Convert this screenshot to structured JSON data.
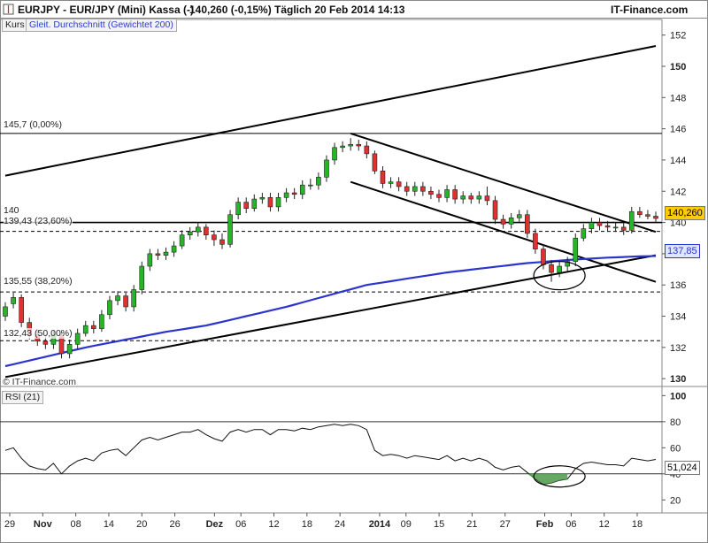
{
  "header": {
    "title": "EURJPY - EUR/JPY (Mini) Kassa (-)",
    "quote": "140,260 (-0,15%)",
    "interval_date": "Täglich  20 Feb 2014 14:13",
    "brand": "IT-Finance.com"
  },
  "legend": {
    "kurs": "Kurs",
    "ma": "Gleit. Durchschnitt (Gewichtet 200)"
  },
  "levels": {
    "l1": "145,7 (0,00%)",
    "l2": "140",
    "l3": "139,43 (23,60%)",
    "l4": "135,55 (38,20%)",
    "l5": "132,43 (50,00%)"
  },
  "price_last": "140,260",
  "ma_last": "137,85",
  "credit": "© IT-Finance.com",
  "rsi": {
    "label": "RSI (21)",
    "last": "51,024",
    "ticks": [
      "100",
      "80",
      "60",
      "40",
      "20"
    ]
  },
  "price_ticks": [
    "152",
    "150",
    "148",
    "146",
    "144",
    "142",
    "140",
    "138",
    "136",
    "134",
    "132",
    "130"
  ],
  "price_ticks_bold": [
    "150",
    "130"
  ],
  "x_ticks": [
    "29",
    "Nov",
    "08",
    "14",
    "20",
    "26",
    "Dez",
    "06",
    "12",
    "18",
    "24",
    "2014",
    "09",
    "15",
    "21",
    "27",
    "Feb",
    "06",
    "12",
    "18"
  ],
  "x_ticks_bold": [
    "Nov",
    "Dez",
    "2014",
    "Feb"
  ],
  "colors": {
    "up": "#26b526",
    "down": "#e03030",
    "ma": "#2b34cc",
    "line": "#000000"
  },
  "chart_data": {
    "type": "candlestick",
    "instrument": "EUR/JPY",
    "interval": "daily",
    "y_range": [
      129.5,
      153
    ],
    "rsi_range": [
      10,
      105
    ],
    "dates": [
      "28.10",
      "29.10",
      "30.10",
      "31.10",
      "01.11",
      "04.11",
      "05.11",
      "06.11",
      "07.11",
      "08.11",
      "11.11",
      "12.11",
      "13.11",
      "14.11",
      "15.11",
      "18.11",
      "19.11",
      "20.11",
      "21.11",
      "22.11",
      "25.11",
      "26.11",
      "27.11",
      "28.11",
      "29.11",
      "02.12",
      "03.12",
      "04.12",
      "05.12",
      "06.12",
      "09.12",
      "10.12",
      "11.12",
      "12.12",
      "13.12",
      "16.12",
      "17.12",
      "18.12",
      "19.12",
      "20.12",
      "23.12",
      "24.12",
      "26.12",
      "27.12",
      "30.12",
      "31.12",
      "02.01",
      "03.01",
      "06.01",
      "07.01",
      "08.01",
      "09.01",
      "10.01",
      "13.01",
      "14.01",
      "15.01",
      "16.01",
      "17.01",
      "20.01",
      "21.01",
      "22.01",
      "23.01",
      "24.01",
      "27.01",
      "28.01",
      "29.01",
      "30.01",
      "31.01",
      "03.02",
      "04.02",
      "05.02",
      "06.02",
      "07.02",
      "10.02",
      "11.02",
      "12.02",
      "13.02",
      "14.02",
      "17.02",
      "18.02",
      "19.02",
      "20.02"
    ],
    "open": [
      134.0,
      134.8,
      135.2,
      133.6,
      132.8,
      132.4,
      132.2,
      132.8,
      131.6,
      132.2,
      132.9,
      133.4,
      133.2,
      134.1,
      135.0,
      135.3,
      134.6,
      135.7,
      137.2,
      138.0,
      137.9,
      138.1,
      138.5,
      139.2,
      139.4,
      139.7,
      139.2,
      138.9,
      138.6,
      140.5,
      141.3,
      140.9,
      141.5,
      141.6,
      141.0,
      141.6,
      141.9,
      141.8,
      142.4,
      142.4,
      142.9,
      144.0,
      144.8,
      144.9,
      145.0,
      144.9,
      144.4,
      143.3,
      142.5,
      142.6,
      142.3,
      142.0,
      142.3,
      142.0,
      141.8,
      141.6,
      142.1,
      141.5,
      141.7,
      141.5,
      141.7,
      141.4,
      140.2,
      139.9,
      140.3,
      140.5,
      139.3,
      138.3,
      137.3,
      136.8,
      137.2,
      137.5,
      139.0,
      139.6,
      140.0,
      139.8,
      139.7,
      139.7,
      139.5,
      140.7,
      140.5,
      140.4
    ],
    "close": [
      134.6,
      135.2,
      133.6,
      132.8,
      132.4,
      132.2,
      132.8,
      131.6,
      132.2,
      132.9,
      133.4,
      133.2,
      134.1,
      135.0,
      135.3,
      134.6,
      135.7,
      137.2,
      138.0,
      137.9,
      138.1,
      138.5,
      139.2,
      139.4,
      139.7,
      139.2,
      138.9,
      138.6,
      140.5,
      141.3,
      140.9,
      141.5,
      141.6,
      141.0,
      141.6,
      141.9,
      141.8,
      142.4,
      142.4,
      142.9,
      144.0,
      144.8,
      144.9,
      145.0,
      144.9,
      144.4,
      143.3,
      142.5,
      142.6,
      142.3,
      142.0,
      142.3,
      142.0,
      141.8,
      141.6,
      142.1,
      141.5,
      141.7,
      141.5,
      141.7,
      141.4,
      140.2,
      139.9,
      140.3,
      140.5,
      139.3,
      138.3,
      137.3,
      136.8,
      137.2,
      137.5,
      139.0,
      139.6,
      140.0,
      139.8,
      139.7,
      139.7,
      139.5,
      140.7,
      140.5,
      140.4,
      140.26
    ],
    "high": [
      134.9,
      135.5,
      135.4,
      133.9,
      133.1,
      132.8,
      133.1,
      133.0,
      132.5,
      133.2,
      133.7,
      133.7,
      134.4,
      135.3,
      135.6,
      135.5,
      136.0,
      137.5,
      138.3,
      138.3,
      138.4,
      138.8,
      139.5,
      139.7,
      140.0,
      139.9,
      139.5,
      139.3,
      140.8,
      141.6,
      141.6,
      141.8,
      141.9,
      141.9,
      141.9,
      142.2,
      142.2,
      142.7,
      142.8,
      143.2,
      144.3,
      145.1,
      145.2,
      145.4,
      145.3,
      145.2,
      144.6,
      143.6,
      142.9,
      142.9,
      142.6,
      142.6,
      142.6,
      142.3,
      142.1,
      142.4,
      142.4,
      142.0,
      141.9,
      142.0,
      142.3,
      141.7,
      140.5,
      140.6,
      140.8,
      140.8,
      139.6,
      138.6,
      137.6,
      137.5,
      137.8,
      139.3,
      139.9,
      140.3,
      140.3,
      140.1,
      140.0,
      140.0,
      141.0,
      141.0,
      140.8,
      140.7
    ],
    "low": [
      133.7,
      134.5,
      133.3,
      132.5,
      132.1,
      131.9,
      131.9,
      131.3,
      131.3,
      131.9,
      132.7,
      132.9,
      133.0,
      133.8,
      134.7,
      134.3,
      134.3,
      135.4,
      136.9,
      137.6,
      137.6,
      137.8,
      138.3,
      138.9,
      139.1,
      138.9,
      138.5,
      138.3,
      138.4,
      140.2,
      140.6,
      140.7,
      141.2,
      140.7,
      140.7,
      141.3,
      141.5,
      141.5,
      142.1,
      142.1,
      142.6,
      143.7,
      144.5,
      144.6,
      144.6,
      144.1,
      143.1,
      142.2,
      142.2,
      142.0,
      141.7,
      141.7,
      141.7,
      141.5,
      141.3,
      141.3,
      141.2,
      141.2,
      141.2,
      141.2,
      141.1,
      139.9,
      139.6,
      139.6,
      140.0,
      139.0,
      138.0,
      137.0,
      136.2,
      136.5,
      136.9,
      137.2,
      138.8,
      139.3,
      139.5,
      139.4,
      139.4,
      139.2,
      139.3,
      140.3,
      140.2,
      140.0
    ],
    "ma": [
      130.8,
      130.92,
      131.04,
      131.16,
      131.28,
      131.4,
      131.52,
      131.64,
      131.76,
      131.88,
      132.0,
      132.1,
      132.2,
      132.3,
      132.4,
      132.5,
      132.6,
      132.7,
      132.8,
      132.9,
      133.0,
      133.08,
      133.16,
      133.24,
      133.32,
      133.4,
      133.52,
      133.64,
      133.76,
      133.88,
      134.0,
      134.12,
      134.24,
      134.36,
      134.48,
      134.6,
      134.74,
      134.88,
      135.02,
      135.16,
      135.3,
      135.44,
      135.58,
      135.72,
      135.86,
      136.0,
      136.08,
      136.16,
      136.24,
      136.32,
      136.4,
      136.48,
      136.56,
      136.64,
      136.72,
      136.8,
      136.86,
      136.92,
      136.98,
      137.04,
      137.1,
      137.16,
      137.22,
      137.28,
      137.34,
      137.4,
      137.44,
      137.48,
      137.52,
      137.56,
      137.6,
      137.63,
      137.66,
      137.69,
      137.72,
      137.75,
      137.77,
      137.79,
      137.81,
      137.83,
      137.84,
      137.85
    ],
    "rsi": [
      58,
      60,
      52,
      46,
      44,
      43,
      48,
      40,
      46,
      50,
      52,
      50,
      56,
      58,
      59,
      54,
      60,
      66,
      68,
      66,
      68,
      70,
      72,
      72,
      74,
      70,
      67,
      65,
      72,
      74,
      72,
      74,
      74,
      70,
      74,
      74,
      73,
      75,
      74,
      76,
      77,
      78,
      77,
      78,
      77,
      74,
      58,
      54,
      55,
      54,
      52,
      54,
      53,
      52,
      51,
      54,
      50,
      52,
      50,
      52,
      50,
      45,
      43,
      45,
      46,
      41,
      36,
      32,
      33,
      35,
      36,
      44,
      48,
      49,
      48,
      47,
      47,
      46,
      52,
      51,
      50,
      51.024
    ],
    "levels": [
      145.7,
      140,
      139.43,
      135.55,
      132.43
    ],
    "trendlines": [
      {
        "from": [
          "28.10",
          143.0
        ],
        "to": [
          "20.02",
          151.3
        ],
        "label": ""
      },
      {
        "from": [
          "28.10",
          130.1
        ],
        "to": [
          "20.02",
          137.9
        ],
        "label": ""
      },
      {
        "from": [
          "27.12",
          145.7
        ],
        "to": [
          "20.02",
          139.4
        ],
        "label": ""
      },
      {
        "from": [
          "27.12",
          142.6
        ],
        "to": [
          "20.02",
          136.2
        ],
        "label": ""
      }
    ]
  }
}
